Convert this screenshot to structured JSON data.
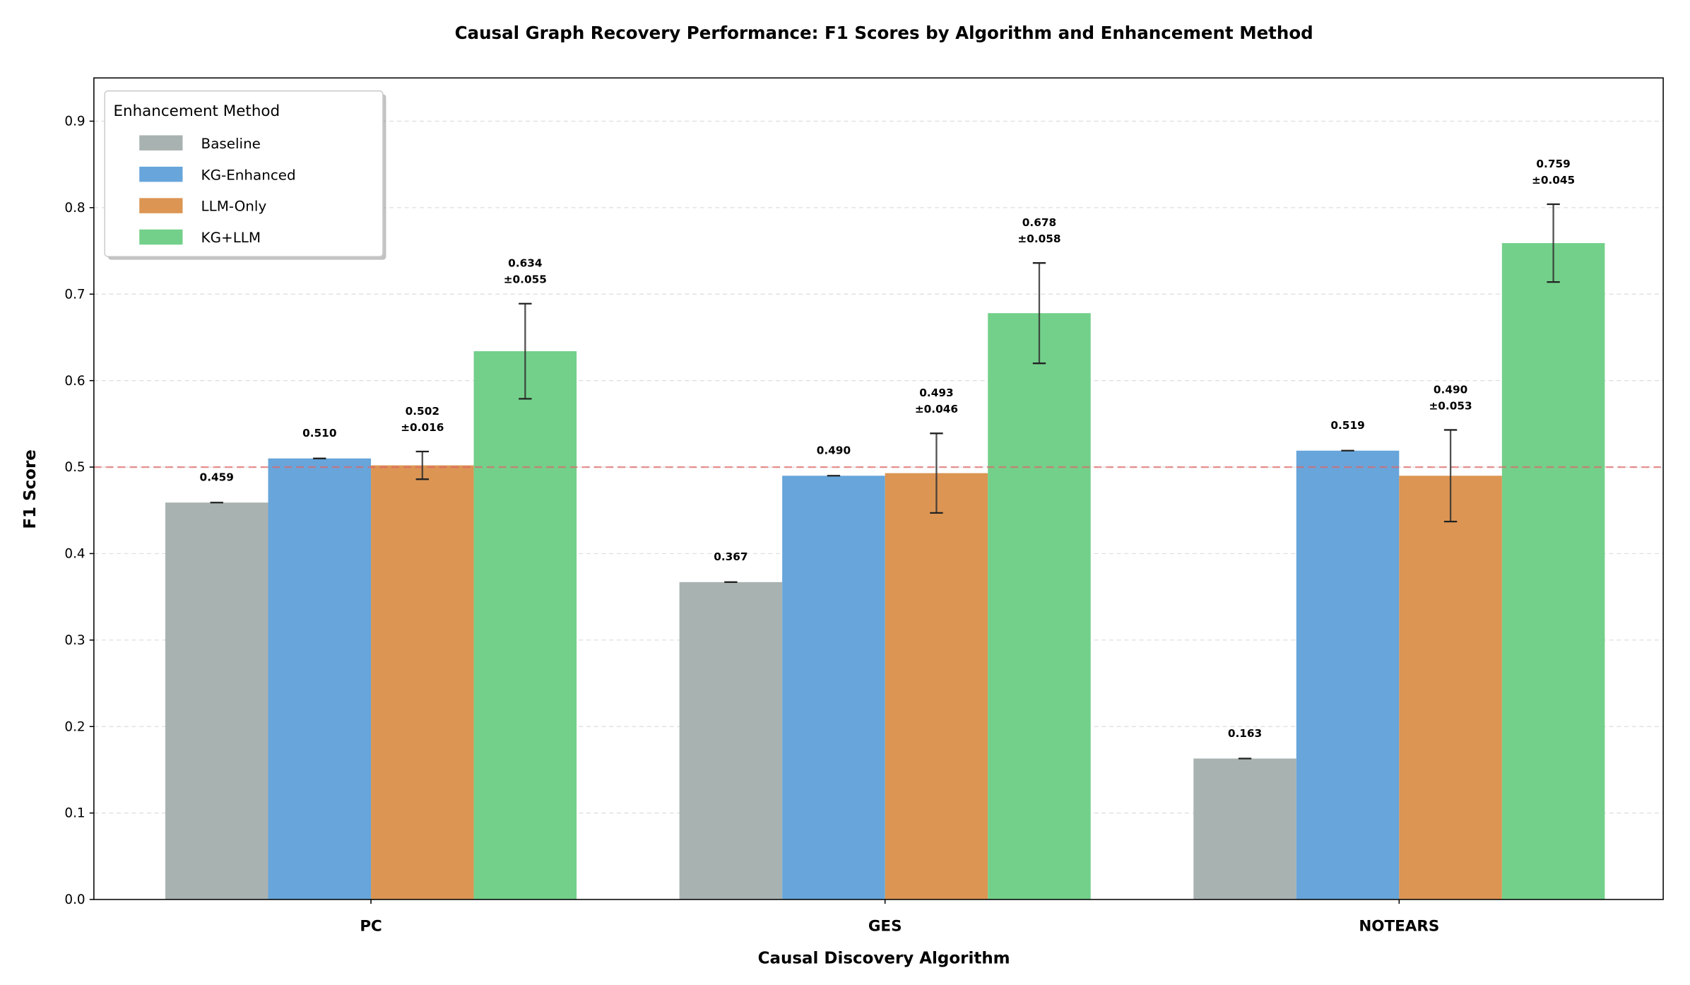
{
  "chart_data": {
    "type": "bar",
    "title": "Causal Graph Recovery Performance: F1 Scores by Algorithm and Enhancement Method",
    "xlabel": "Causal Discovery Algorithm",
    "ylabel": "F1 Score",
    "ylim": [
      0,
      0.95
    ],
    "yticks": [
      "0.0",
      "0.1",
      "0.2",
      "0.3",
      "0.4",
      "0.5",
      "0.6",
      "0.7",
      "0.8",
      "0.9"
    ],
    "categories": [
      "PC",
      "GES",
      "NOTEARS"
    ],
    "grid": true,
    "reference_line": {
      "y": 0.5,
      "color": "#e06666",
      "style": "dashed"
    },
    "legend": {
      "title": "Enhancement Method",
      "placement": "top-left"
    },
    "series": [
      {
        "name": "Baseline",
        "color": "#a8b2b1",
        "values": [
          0.459,
          0.367,
          0.163
        ],
        "errors": [
          0,
          0,
          0
        ]
      },
      {
        "name": "KG-Enhanced",
        "color": "#67a5db",
        "values": [
          0.51,
          0.49,
          0.519
        ],
        "errors": [
          0,
          0,
          0
        ]
      },
      {
        "name": "LLM-Only",
        "color": "#dc9553",
        "values": [
          0.502,
          0.493,
          0.49
        ],
        "errors": [
          0.016,
          0.046,
          0.053
        ]
      },
      {
        "name": "KG+LLM",
        "color": "#73d08a",
        "values": [
          0.634,
          0.678,
          0.759
        ],
        "errors": [
          0.055,
          0.058,
          0.045
        ]
      }
    ]
  }
}
